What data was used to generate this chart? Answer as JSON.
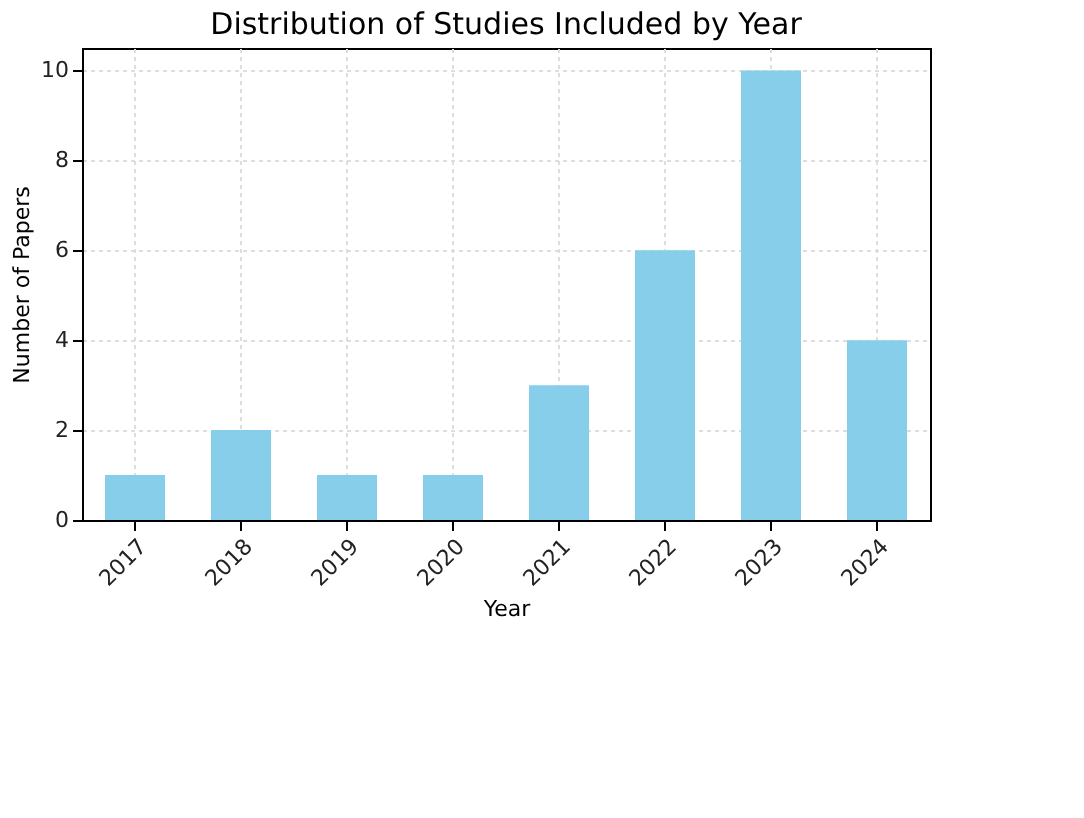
{
  "chart_data": {
    "type": "bar",
    "title": "Distribution of Studies Included by Year",
    "xlabel": "Year",
    "ylabel": "Number of Papers",
    "categories": [
      "2017",
      "2018",
      "2019",
      "2020",
      "2021",
      "2022",
      "2023",
      "2024"
    ],
    "values": [
      1,
      2,
      1,
      1,
      3,
      6,
      10,
      4
    ],
    "color": "#87ceeb",
    "ylim": [
      0,
      10.5
    ],
    "yticks": [
      0,
      2,
      4,
      6,
      8,
      10
    ],
    "grid": true
  }
}
